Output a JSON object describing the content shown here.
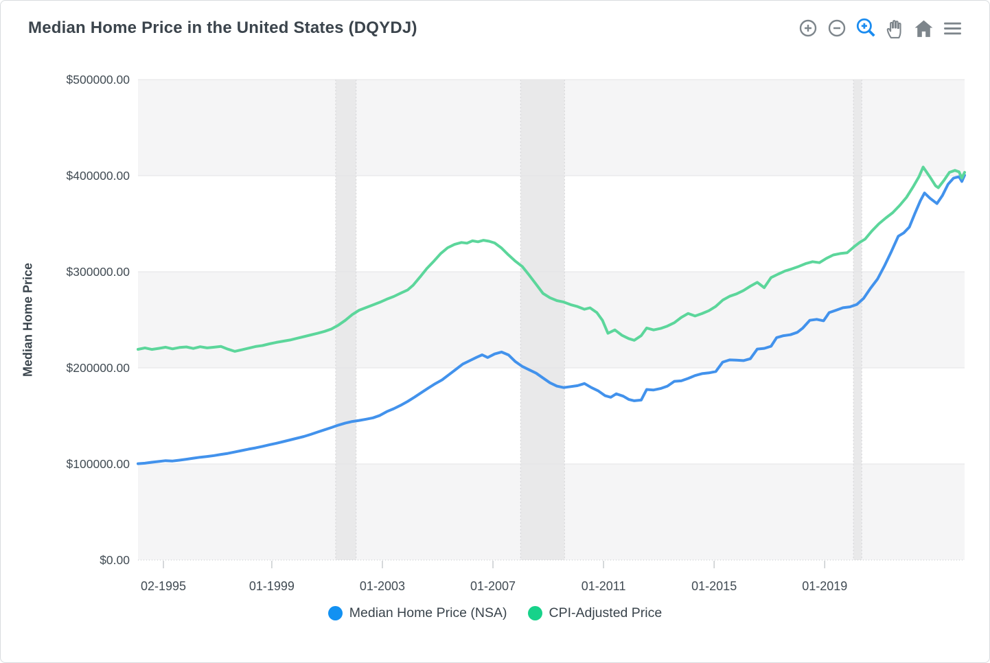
{
  "header": {
    "title": "Median Home Price in the United States (DQYDJ)"
  },
  "toolbar": {
    "icons": [
      "zoom-in",
      "zoom-out",
      "box-zoom",
      "pan",
      "reset-home",
      "menu"
    ],
    "active_icon": "box-zoom"
  },
  "colors": {
    "accent_blue": "#1b8cf0",
    "icon_gray": "#7d858b",
    "title_text": "#3b444c",
    "axis_text": "#414b53",
    "band_fill": "#f5f5f6",
    "grid_line": "#e3e3e6",
    "recession_fill": "#e9e9ea",
    "blue_line": "#4292ec",
    "green_line": "#5cd69b",
    "legend_blue": "#1291f2",
    "legend_green": "#17d28a"
  },
  "chart_data": {
    "type": "line",
    "title": "Median Home Price in the United States (DQYDJ)",
    "xlabel": "",
    "ylabel": "Median Home Price",
    "x_domain": [
      1994.2,
      2024.1
    ],
    "y_domain": [
      0,
      500000
    ],
    "grid": "horizontal-bands",
    "legend_position": "bottom-center",
    "x_ticks": [
      {
        "x": 1995.12,
        "label": "02-1995"
      },
      {
        "x": 1999.04,
        "label": "01-1999"
      },
      {
        "x": 2003.04,
        "label": "01-2003"
      },
      {
        "x": 2007.04,
        "label": "01-2007"
      },
      {
        "x": 2011.04,
        "label": "01-2011"
      },
      {
        "x": 2015.04,
        "label": "01-2015"
      },
      {
        "x": 2019.04,
        "label": "01-2019"
      }
    ],
    "y_ticks": [
      {
        "v": 0,
        "label": "$0.00"
      },
      {
        "v": 100000,
        "label": "$100000.00"
      },
      {
        "v": 200000,
        "label": "$200000.00"
      },
      {
        "v": 300000,
        "label": "$300000.00"
      },
      {
        "v": 400000,
        "label": "$400000.00"
      },
      {
        "v": 500000,
        "label": "$500000.00"
      }
    ],
    "recession_bands": [
      [
        2001.35,
        2002.09
      ],
      [
        2008.04,
        2009.63
      ],
      [
        2020.08,
        2020.38
      ]
    ],
    "series": [
      {
        "name": "Median Home Price (NSA)",
        "color": "#4292ec",
        "legend_color": "#1291f2",
        "points": [
          [
            1994.2,
            100300
          ],
          [
            1994.45,
            100800
          ],
          [
            1994.7,
            101800
          ],
          [
            1994.95,
            102600
          ],
          [
            1995.2,
            103400
          ],
          [
            1995.45,
            103100
          ],
          [
            1995.7,
            103900
          ],
          [
            1995.95,
            104900
          ],
          [
            1996.2,
            106000
          ],
          [
            1996.45,
            107000
          ],
          [
            1996.7,
            107800
          ],
          [
            1996.95,
            108700
          ],
          [
            1997.2,
            109900
          ],
          [
            1997.45,
            111000
          ],
          [
            1997.7,
            112400
          ],
          [
            1997.95,
            113900
          ],
          [
            1998.2,
            115400
          ],
          [
            1998.45,
            116700
          ],
          [
            1998.7,
            118300
          ],
          [
            1998.95,
            119900
          ],
          [
            1999.2,
            121500
          ],
          [
            1999.45,
            123200
          ],
          [
            1999.7,
            125000
          ],
          [
            1999.95,
            126800
          ],
          [
            2000.2,
            128600
          ],
          [
            2000.45,
            130800
          ],
          [
            2000.7,
            133200
          ],
          [
            2000.95,
            135600
          ],
          [
            2001.2,
            137900
          ],
          [
            2001.45,
            140400
          ],
          [
            2001.7,
            142600
          ],
          [
            2001.95,
            144200
          ],
          [
            2002.2,
            145300
          ],
          [
            2002.45,
            146600
          ],
          [
            2002.7,
            148000
          ],
          [
            2002.95,
            150500
          ],
          [
            2003.2,
            154500
          ],
          [
            2003.45,
            157500
          ],
          [
            2003.7,
            161000
          ],
          [
            2003.95,
            165000
          ],
          [
            2004.2,
            169500
          ],
          [
            2004.45,
            174200
          ],
          [
            2004.7,
            179000
          ],
          [
            2004.95,
            183500
          ],
          [
            2005.2,
            187500
          ],
          [
            2005.45,
            193000
          ],
          [
            2005.7,
            198500
          ],
          [
            2005.95,
            204000
          ],
          [
            2006.2,
            207500
          ],
          [
            2006.45,
            211000
          ],
          [
            2006.65,
            213600
          ],
          [
            2006.85,
            210800
          ],
          [
            2007.1,
            214500
          ],
          [
            2007.35,
            216500
          ],
          [
            2007.6,
            213500
          ],
          [
            2007.85,
            206500
          ],
          [
            2008.1,
            201500
          ],
          [
            2008.35,
            198000
          ],
          [
            2008.6,
            194500
          ],
          [
            2008.85,
            189500
          ],
          [
            2009.1,
            184500
          ],
          [
            2009.35,
            181000
          ],
          [
            2009.6,
            179500
          ],
          [
            2009.85,
            180500
          ],
          [
            2010.1,
            181500
          ],
          [
            2010.35,
            183700
          ],
          [
            2010.6,
            179500
          ],
          [
            2010.85,
            176000
          ],
          [
            2011.1,
            171000
          ],
          [
            2011.3,
            169400
          ],
          [
            2011.5,
            173000
          ],
          [
            2011.75,
            170600
          ],
          [
            2011.95,
            167200
          ],
          [
            2012.15,
            165800
          ],
          [
            2012.4,
            166500
          ],
          [
            2012.6,
            177500
          ],
          [
            2012.85,
            177000
          ],
          [
            2013.1,
            178500
          ],
          [
            2013.35,
            181000
          ],
          [
            2013.6,
            186000
          ],
          [
            2013.85,
            186500
          ],
          [
            2014.1,
            189000
          ],
          [
            2014.35,
            192000
          ],
          [
            2014.6,
            194000
          ],
          [
            2014.85,
            194800
          ],
          [
            2015.1,
            196200
          ],
          [
            2015.35,
            206000
          ],
          [
            2015.6,
            208300
          ],
          [
            2015.85,
            208000
          ],
          [
            2016.1,
            207600
          ],
          [
            2016.35,
            209500
          ],
          [
            2016.6,
            219600
          ],
          [
            2016.85,
            220300
          ],
          [
            2017.1,
            222500
          ],
          [
            2017.3,
            231500
          ],
          [
            2017.55,
            233500
          ],
          [
            2017.8,
            234500
          ],
          [
            2018.05,
            237000
          ],
          [
            2018.25,
            241500
          ],
          [
            2018.5,
            249500
          ],
          [
            2018.75,
            250500
          ],
          [
            2019.0,
            249000
          ],
          [
            2019.2,
            257500
          ],
          [
            2019.45,
            260000
          ],
          [
            2019.7,
            262600
          ],
          [
            2019.95,
            263500
          ],
          [
            2020.2,
            266000
          ],
          [
            2020.45,
            272400
          ],
          [
            2020.7,
            283000
          ],
          [
            2020.95,
            292500
          ],
          [
            2021.2,
            306000
          ],
          [
            2021.45,
            321000
          ],
          [
            2021.7,
            337000
          ],
          [
            2021.9,
            340500
          ],
          [
            2022.1,
            346500
          ],
          [
            2022.3,
            360600
          ],
          [
            2022.5,
            374000
          ],
          [
            2022.65,
            382000
          ],
          [
            2022.85,
            376500
          ],
          [
            2023.1,
            371000
          ],
          [
            2023.3,
            379500
          ],
          [
            2023.5,
            391000
          ],
          [
            2023.7,
            397500
          ],
          [
            2023.9,
            399000
          ],
          [
            2024.0,
            394000
          ],
          [
            2024.1,
            400500
          ]
        ]
      },
      {
        "name": "CPI-Adjusted Price",
        "color": "#5cd69b",
        "legend_color": "#17d28a",
        "points": [
          [
            1994.2,
            219300
          ],
          [
            1994.45,
            220800
          ],
          [
            1994.7,
            219200
          ],
          [
            1994.95,
            220300
          ],
          [
            1995.2,
            221500
          ],
          [
            1995.45,
            219800
          ],
          [
            1995.7,
            221200
          ],
          [
            1995.95,
            221800
          ],
          [
            1996.2,
            220200
          ],
          [
            1996.45,
            222000
          ],
          [
            1996.7,
            220800
          ],
          [
            1996.95,
            221500
          ],
          [
            1997.2,
            222300
          ],
          [
            1997.45,
            219500
          ],
          [
            1997.7,
            217200
          ],
          [
            1997.95,
            218800
          ],
          [
            1998.2,
            220500
          ],
          [
            1998.45,
            222200
          ],
          [
            1998.7,
            223200
          ],
          [
            1998.95,
            225000
          ],
          [
            1999.2,
            226500
          ],
          [
            1999.45,
            227800
          ],
          [
            1999.7,
            229000
          ],
          [
            1999.95,
            230800
          ],
          [
            2000.2,
            232500
          ],
          [
            2000.45,
            234300
          ],
          [
            2000.7,
            236000
          ],
          [
            2000.95,
            238000
          ],
          [
            2001.2,
            240500
          ],
          [
            2001.45,
            244500
          ],
          [
            2001.7,
            249500
          ],
          [
            2001.95,
            255500
          ],
          [
            2002.2,
            260000
          ],
          [
            2002.45,
            262800
          ],
          [
            2002.7,
            265500
          ],
          [
            2002.95,
            268300
          ],
          [
            2003.2,
            271500
          ],
          [
            2003.45,
            274300
          ],
          [
            2003.7,
            277700
          ],
          [
            2003.95,
            281000
          ],
          [
            2004.15,
            286000
          ],
          [
            2004.4,
            294500
          ],
          [
            2004.65,
            303500
          ],
          [
            2004.9,
            311000
          ],
          [
            2005.15,
            319000
          ],
          [
            2005.4,
            325000
          ],
          [
            2005.65,
            328500
          ],
          [
            2005.9,
            330500
          ],
          [
            2006.1,
            329800
          ],
          [
            2006.3,
            332200
          ],
          [
            2006.5,
            331200
          ],
          [
            2006.7,
            332800
          ],
          [
            2006.9,
            331800
          ],
          [
            2007.1,
            330000
          ],
          [
            2007.35,
            324700
          ],
          [
            2007.6,
            317600
          ],
          [
            2007.85,
            311000
          ],
          [
            2008.1,
            305500
          ],
          [
            2008.35,
            296500
          ],
          [
            2008.6,
            287000
          ],
          [
            2008.85,
            277500
          ],
          [
            2009.1,
            273000
          ],
          [
            2009.35,
            270000
          ],
          [
            2009.6,
            268500
          ],
          [
            2009.85,
            265800
          ],
          [
            2010.1,
            263800
          ],
          [
            2010.35,
            261000
          ],
          [
            2010.55,
            262500
          ],
          [
            2010.8,
            257500
          ],
          [
            2011.0,
            249500
          ],
          [
            2011.2,
            236000
          ],
          [
            2011.45,
            239500
          ],
          [
            2011.7,
            234000
          ],
          [
            2011.95,
            230500
          ],
          [
            2012.15,
            228700
          ],
          [
            2012.4,
            233500
          ],
          [
            2012.6,
            241500
          ],
          [
            2012.85,
            239500
          ],
          [
            2013.1,
            241000
          ],
          [
            2013.35,
            243500
          ],
          [
            2013.6,
            247000
          ],
          [
            2013.85,
            252500
          ],
          [
            2014.1,
            256600
          ],
          [
            2014.35,
            254000
          ],
          [
            2014.6,
            256500
          ],
          [
            2014.85,
            259500
          ],
          [
            2015.1,
            264000
          ],
          [
            2015.35,
            270500
          ],
          [
            2015.6,
            274500
          ],
          [
            2015.85,
            277000
          ],
          [
            2016.1,
            280500
          ],
          [
            2016.35,
            285000
          ],
          [
            2016.6,
            289000
          ],
          [
            2016.85,
            283500
          ],
          [
            2017.1,
            294000
          ],
          [
            2017.35,
            297500
          ],
          [
            2017.6,
            300800
          ],
          [
            2017.85,
            303000
          ],
          [
            2018.1,
            305600
          ],
          [
            2018.35,
            308500
          ],
          [
            2018.6,
            310500
          ],
          [
            2018.85,
            309500
          ],
          [
            2019.1,
            314000
          ],
          [
            2019.35,
            317500
          ],
          [
            2019.6,
            319000
          ],
          [
            2019.85,
            319800
          ],
          [
            2020.1,
            326000
          ],
          [
            2020.3,
            330500
          ],
          [
            2020.5,
            334000
          ],
          [
            2020.75,
            342600
          ],
          [
            2021.0,
            350000
          ],
          [
            2021.25,
            356000
          ],
          [
            2021.5,
            361500
          ],
          [
            2021.75,
            369000
          ],
          [
            2022.0,
            377500
          ],
          [
            2022.25,
            389000
          ],
          [
            2022.45,
            399000
          ],
          [
            2022.6,
            409000
          ],
          [
            2022.85,
            398500
          ],
          [
            2023.05,
            389500
          ],
          [
            2023.15,
            387500
          ],
          [
            2023.35,
            395000
          ],
          [
            2023.55,
            403500
          ],
          [
            2023.75,
            405500
          ],
          [
            2023.9,
            404000
          ],
          [
            2024.0,
            397500
          ],
          [
            2024.1,
            403500
          ]
        ]
      }
    ]
  }
}
